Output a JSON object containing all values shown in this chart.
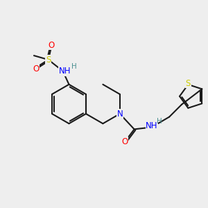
{
  "bg_color": "#eeeeee",
  "bond_color": "#1a1a1a",
  "bond_width": 1.5,
  "atom_colors": {
    "N": "#0000ff",
    "O": "#ff0000",
    "S": "#cccc00",
    "H": "#4a9090",
    "C": "#1a1a1a"
  },
  "font_size_atom": 8.5,
  "font_size_small": 7.5
}
